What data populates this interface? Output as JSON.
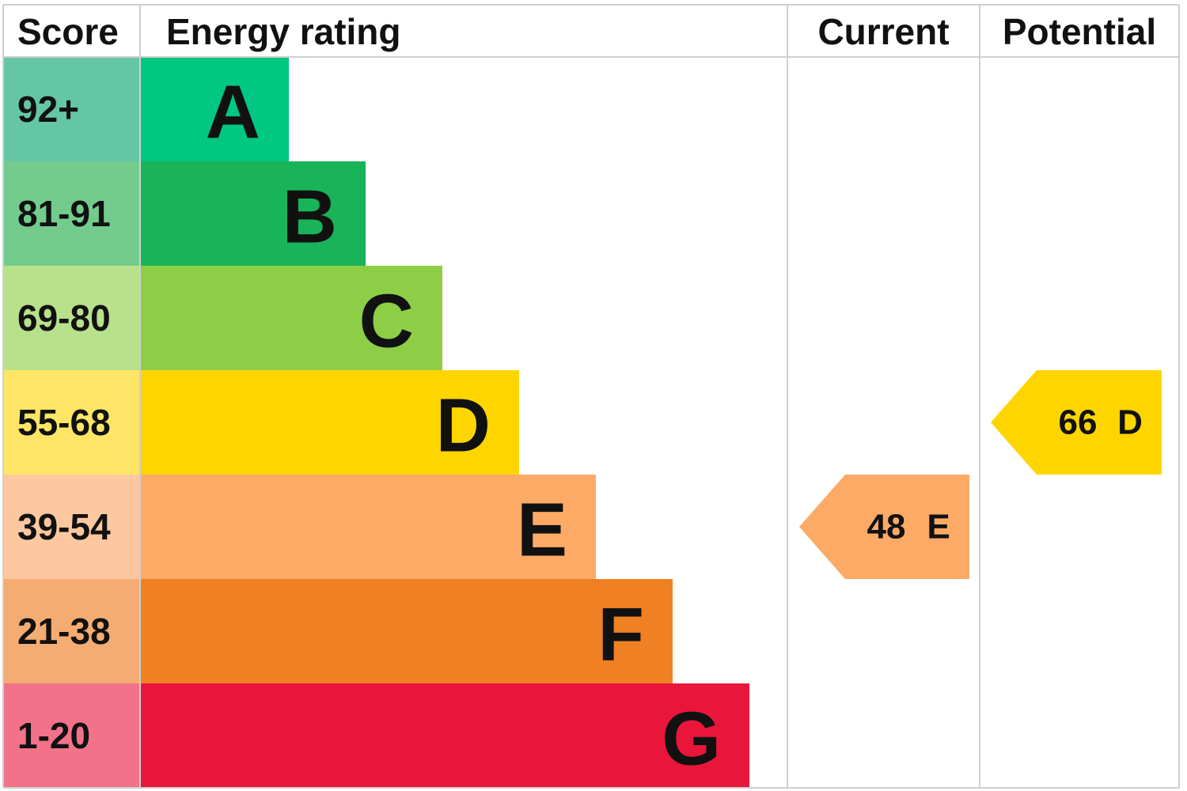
{
  "header": {
    "score": "Score",
    "rating": "Energy rating",
    "current": "Current",
    "potential": "Potential"
  },
  "bands": [
    {
      "score": "92+",
      "rating": "A",
      "color": "#00c781",
      "score_color": "#65c6a5"
    },
    {
      "score": "81-91",
      "rating": "B",
      "color": "#19b459",
      "score_color": "#73cc8d"
    },
    {
      "score": "69-80",
      "rating": "C",
      "color": "#8dce46",
      "score_color": "#b9e08b"
    },
    {
      "score": "55-68",
      "rating": "D",
      "color": "#ffd500",
      "score_color": "#ffe566"
    },
    {
      "score": "39-54",
      "rating": "E",
      "color": "#fcaa65",
      "score_color": "#fdc7a0"
    },
    {
      "score": "21-38",
      "rating": "F",
      "color": "#ef8023",
      "score_color": "#f4ac72"
    },
    {
      "score": "1-20",
      "rating": "G",
      "color": "#e9153b",
      "score_color": "#f27289"
    }
  ],
  "current": {
    "value": 48,
    "rating": "E",
    "color": "#fcaa65"
  },
  "potential": {
    "value": 66,
    "rating": "D",
    "color": "#ffd500"
  }
}
